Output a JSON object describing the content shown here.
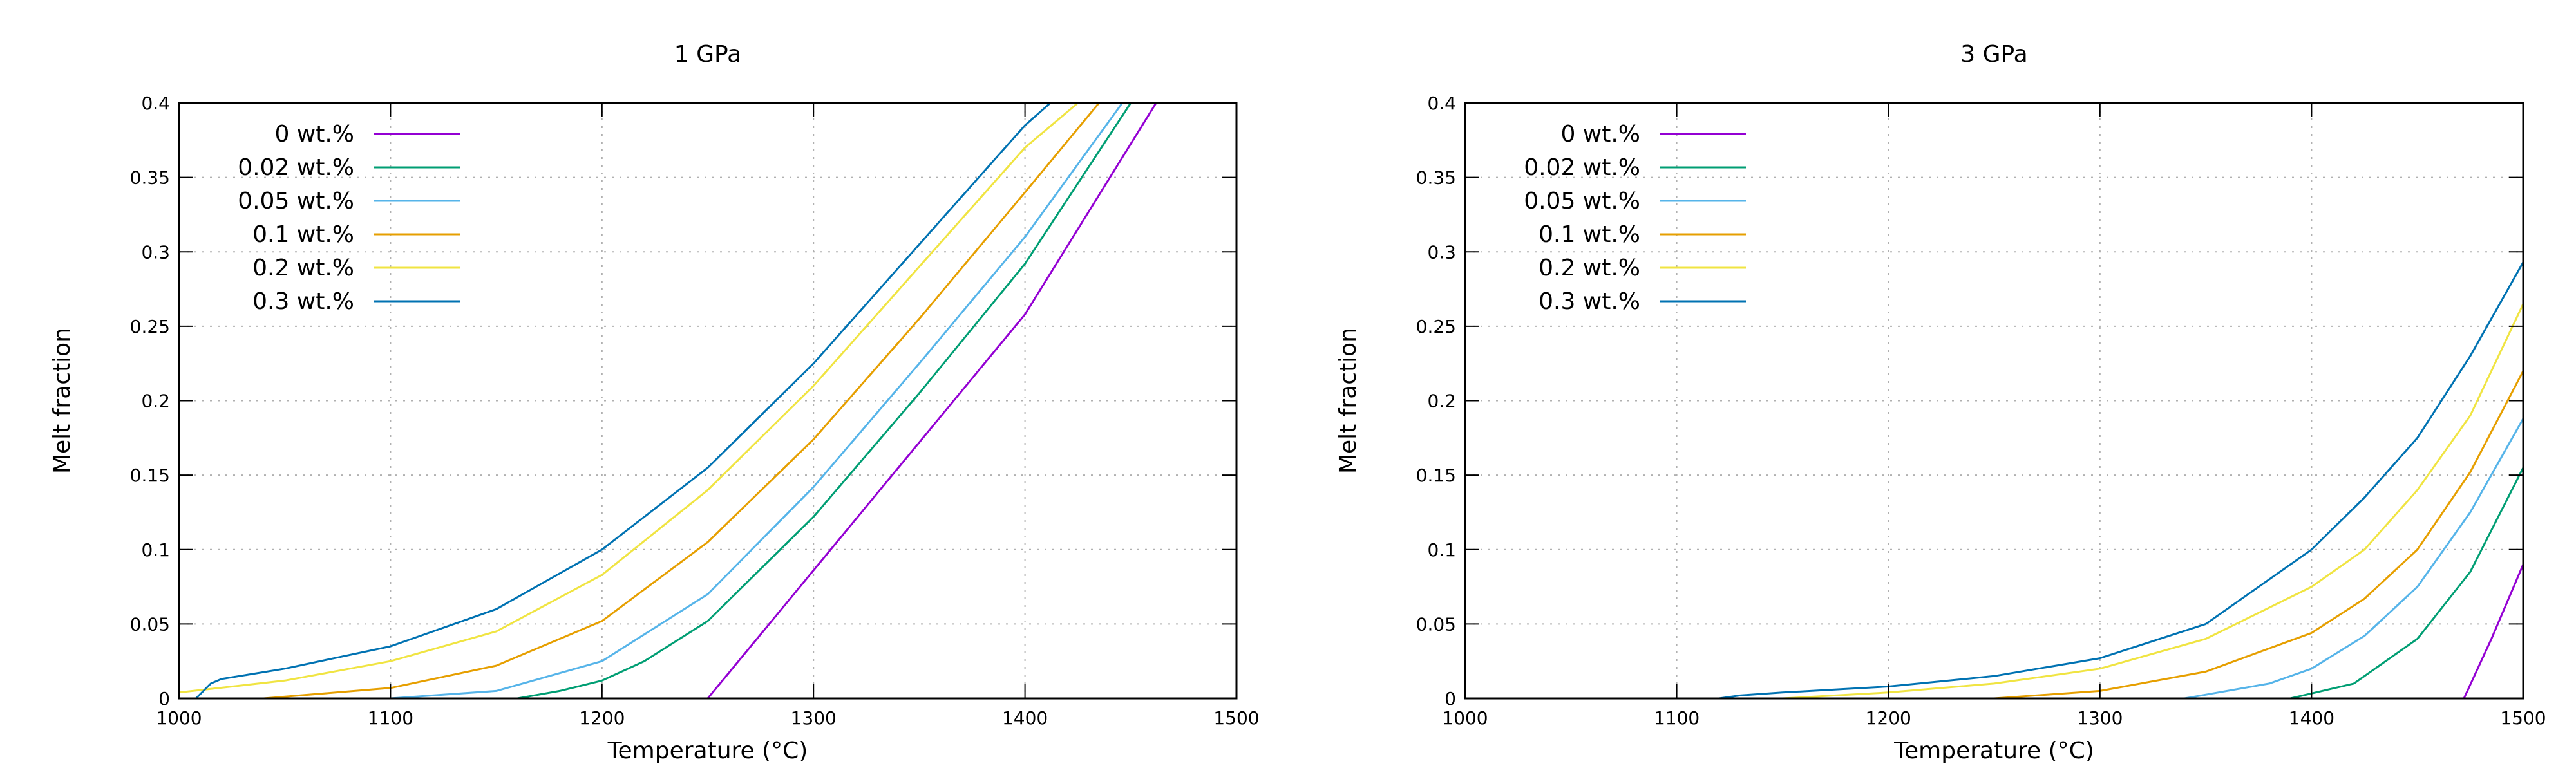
{
  "chart_data": [
    {
      "type": "line",
      "title": "1 GPa",
      "xlabel": "Temperature (°C)",
      "ylabel": "Melt fraction",
      "xlim": [
        1000,
        1500
      ],
      "ylim": [
        0,
        0.4
      ],
      "xticks": [
        "1000",
        "1100",
        "1200",
        "1300",
        "1400",
        "1500"
      ],
      "yticks": [
        "0",
        "0.05",
        "0.1",
        "0.15",
        "0.2",
        "0.25",
        "0.3",
        "0.35",
        "0.4"
      ],
      "grid": true,
      "legend_position": "top-left",
      "series": [
        {
          "name": "0 wt.%",
          "color": "#9400d3",
          "x": [
            1250,
            1300,
            1350,
            1400,
            1462
          ],
          "y": [
            0,
            0.086,
            0.172,
            0.258,
            0.4
          ]
        },
        {
          "name": "0.02 wt.%",
          "color": "#009e73",
          "x": [
            1160,
            1180,
            1200,
            1220,
            1250,
            1300,
            1350,
            1400,
            1450
          ],
          "y": [
            0,
            0.005,
            0.012,
            0.025,
            0.052,
            0.122,
            0.205,
            0.292,
            0.4
          ]
        },
        {
          "name": "0.05 wt.%",
          "color": "#56b4e9",
          "x": [
            1100,
            1150,
            1200,
            1250,
            1300,
            1350,
            1400,
            1446
          ],
          "y": [
            0,
            0.005,
            0.025,
            0.07,
            0.142,
            0.225,
            0.31,
            0.4
          ]
        },
        {
          "name": "0.1 wt.%",
          "color": "#e69f00",
          "x": [
            1040,
            1100,
            1150,
            1200,
            1250,
            1300,
            1350,
            1400,
            1435
          ],
          "y": [
            0,
            0.007,
            0.022,
            0.052,
            0.105,
            0.174,
            0.255,
            0.34,
            0.4
          ]
        },
        {
          "name": "0.2 wt.%",
          "color": "#f0e442",
          "x": [
            1000,
            1050,
            1100,
            1150,
            1200,
            1250,
            1300,
            1350,
            1400,
            1425
          ],
          "y": [
            0.004,
            0.012,
            0.025,
            0.045,
            0.083,
            0.14,
            0.21,
            0.29,
            0.37,
            0.4
          ]
        },
        {
          "name": "0.3 wt.%",
          "color": "#0072b2",
          "x": [
            1008,
            1015,
            1020,
            1050,
            1100,
            1150,
            1200,
            1250,
            1300,
            1350,
            1400,
            1412
          ],
          "y": [
            0,
            0.01,
            0.013,
            0.02,
            0.035,
            0.06,
            0.1,
            0.155,
            0.225,
            0.305,
            0.385,
            0.4
          ]
        }
      ]
    },
    {
      "type": "line",
      "title": "3 GPa",
      "xlabel": "Temperature (°C)",
      "ylabel": "Melt fraction",
      "xlim": [
        1000,
        1500
      ],
      "ylim": [
        0,
        0.4
      ],
      "xticks": [
        "1000",
        "1100",
        "1200",
        "1300",
        "1400",
        "1500"
      ],
      "yticks": [
        "0",
        "0.05",
        "0.1",
        "0.15",
        "0.2",
        "0.25",
        "0.3",
        "0.35",
        "0.4"
      ],
      "grid": true,
      "legend_position": "top-left",
      "series": [
        {
          "name": "0 wt.%",
          "color": "#9400d3",
          "x": [
            1472,
            1485,
            1500
          ],
          "y": [
            0,
            0.04,
            0.09
          ]
        },
        {
          "name": "0.02 wt.%",
          "color": "#009e73",
          "x": [
            1390,
            1420,
            1450,
            1475,
            1500
          ],
          "y": [
            0,
            0.01,
            0.04,
            0.085,
            0.155
          ]
        },
        {
          "name": "0.05 wt.%",
          "color": "#56b4e9",
          "x": [
            1340,
            1380,
            1400,
            1425,
            1450,
            1475,
            1500
          ],
          "y": [
            0,
            0.01,
            0.02,
            0.042,
            0.075,
            0.125,
            0.188
          ]
        },
        {
          "name": "0.1 wt.%",
          "color": "#e69f00",
          "x": [
            1250,
            1300,
            1350,
            1400,
            1425,
            1450,
            1475,
            1500
          ],
          "y": [
            0,
            0.005,
            0.018,
            0.044,
            0.067,
            0.1,
            0.152,
            0.22
          ]
        },
        {
          "name": "0.2 wt.%",
          "color": "#f0e442",
          "x": [
            1150,
            1200,
            1250,
            1300,
            1350,
            1400,
            1425,
            1450,
            1475,
            1500
          ],
          "y": [
            0,
            0.004,
            0.01,
            0.02,
            0.04,
            0.075,
            0.1,
            0.14,
            0.19,
            0.265
          ]
        },
        {
          "name": "0.3 wt.%",
          "color": "#0072b2",
          "x": [
            1120,
            1130,
            1150,
            1200,
            1250,
            1300,
            1350,
            1400,
            1425,
            1450,
            1475,
            1500
          ],
          "y": [
            0,
            0.002,
            0.004,
            0.008,
            0.015,
            0.027,
            0.05,
            0.1,
            0.135,
            0.175,
            0.23,
            0.293
          ]
        }
      ]
    }
  ]
}
